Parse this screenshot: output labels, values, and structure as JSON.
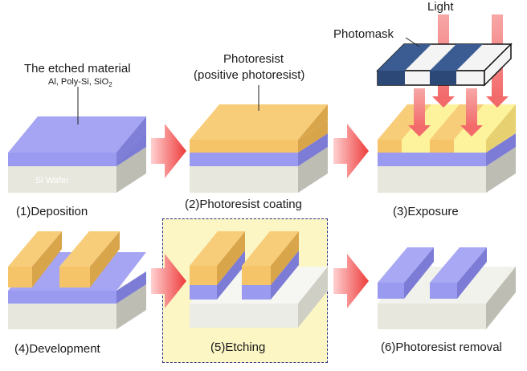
{
  "labels": {
    "etched_material": "The etched material",
    "etched_examples": "Al, Poly-Si, SiO",
    "etched_sub": "2",
    "wafer": "Si Wafer",
    "photoresist": "Photoresist",
    "photoresist_type": "(positive photoresist)",
    "photomask": "Photomask",
    "light": "Light"
  },
  "steps": [
    "(1)Deposition",
    "(2)Photoresist coating",
    "(3)Exposure",
    "(4)Development",
    "(5)Etching",
    "(6)Photoresist removal"
  ],
  "colors": {
    "material": "#9a9af0",
    "photoresist": "#f6c468",
    "exposed": "#fdf39c",
    "wafer": "#e7e7de",
    "arrow": "#f24a4a",
    "mask": "#2f4a78",
    "highlight": "#fbf6c4"
  }
}
